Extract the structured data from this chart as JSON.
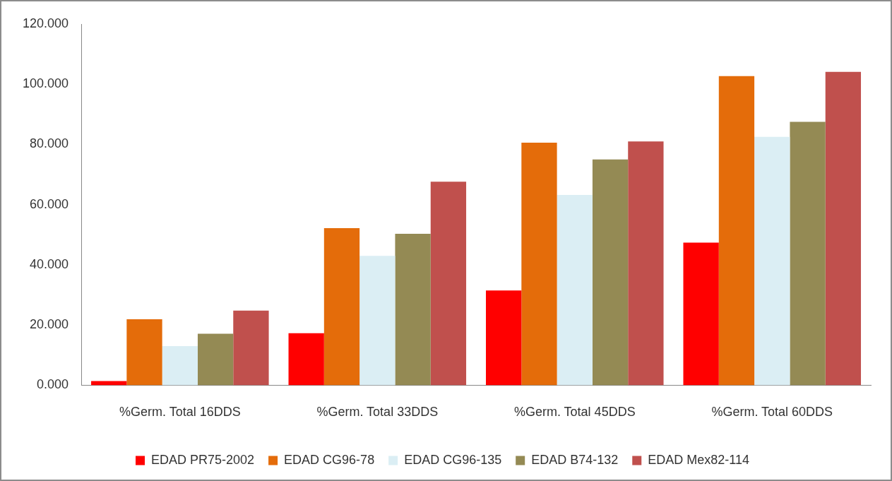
{
  "chart_data": {
    "type": "bar",
    "categories": [
      "%Germ. Total 16DDS",
      "%Germ. Total 33DDS",
      "%Germ. Total 45DDS",
      "%Germ. Total 60DDS"
    ],
    "series": [
      {
        "name": "EDAD PR75-2002",
        "color": "#ff0000",
        "values": [
          1.4,
          17.3,
          31.5,
          47.4
        ]
      },
      {
        "name": "EDAD CG96-78",
        "color": "#e46c0a",
        "values": [
          21.9,
          52.2,
          80.6,
          102.7
        ]
      },
      {
        "name": "EDAD CG96-135",
        "color": "#dbeef4",
        "values": [
          13.0,
          43.0,
          63.2,
          82.5
        ]
      },
      {
        "name": "EDAD B74-132",
        "color": "#948a54",
        "values": [
          17.1,
          50.3,
          75.0,
          87.5
        ]
      },
      {
        "name": "EDAD Mex82-114",
        "color": "#c0504d",
        "values": [
          24.8,
          67.6,
          81.0,
          104.1
        ]
      }
    ],
    "ylim": [
      0,
      120
    ],
    "yticks": [
      {
        "value": 0,
        "label": "0.000"
      },
      {
        "value": 20,
        "label": "20.000"
      },
      {
        "value": 40,
        "label": "40.000"
      },
      {
        "value": 60,
        "label": "60.000"
      },
      {
        "value": 80,
        "label": "80.000"
      },
      {
        "value": 100,
        "label": "100.000"
      },
      {
        "value": 120,
        "label": "120.000"
      }
    ],
    "legend": "bottom"
  }
}
